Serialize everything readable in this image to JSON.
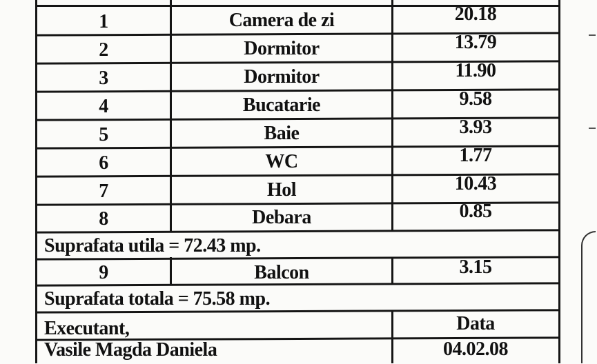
{
  "table": {
    "rows": [
      {
        "nr": "1",
        "room": "Camera de zi",
        "area": "20.18"
      },
      {
        "nr": "2",
        "room": "Dormitor",
        "area": "13.79"
      },
      {
        "nr": "3",
        "room": "Dormitor",
        "area": "11.90"
      },
      {
        "nr": "4",
        "room": "Bucatarie",
        "area": "9.58"
      },
      {
        "nr": "5",
        "room": "Baie",
        "area": "3.93"
      },
      {
        "nr": "6",
        "room": "WC",
        "area": "1.77"
      },
      {
        "nr": "7",
        "room": "Hol",
        "area": "10.43"
      },
      {
        "nr": "8",
        "room": "Debara",
        "area": "0.85"
      }
    ],
    "useful_area": "Suprafata utila =  72.43 mp.",
    "balcony": {
      "nr": "9",
      "room": "Balcon",
      "area": "3.15"
    },
    "total_area": "Suprafata totala = 75.58 mp."
  },
  "footer": {
    "executant_label": "Executant,",
    "date_label": "Data",
    "executant_name": "Vasile Magda Daniela",
    "date_value": "04.02.08"
  }
}
